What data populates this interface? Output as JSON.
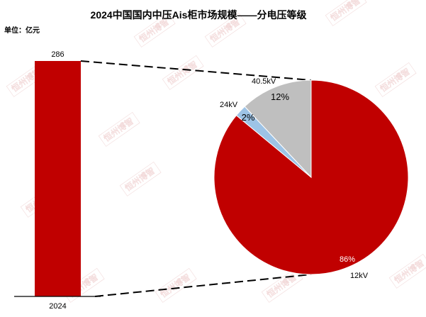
{
  "chart_data": {
    "title": "2024中国国内中压Ais柜市场规模——分电压等级",
    "unit_label": "单位：亿元",
    "bar": {
      "type": "bar",
      "categories": [
        "2024"
      ],
      "values": [
        286
      ],
      "value_label": "286",
      "color": "#c00000"
    },
    "pie": {
      "type": "pie",
      "slices": [
        {
          "name": "12kV",
          "value": 86,
          "label": "86%",
          "color": "#c00000"
        },
        {
          "name": "24kV",
          "value": 2,
          "label": "2%",
          "color": "#9dc3e6"
        },
        {
          "name": "40.5kV",
          "value": 12,
          "label": "12%",
          "color": "#bfbfbf"
        }
      ]
    },
    "watermark": "恒州博智"
  }
}
